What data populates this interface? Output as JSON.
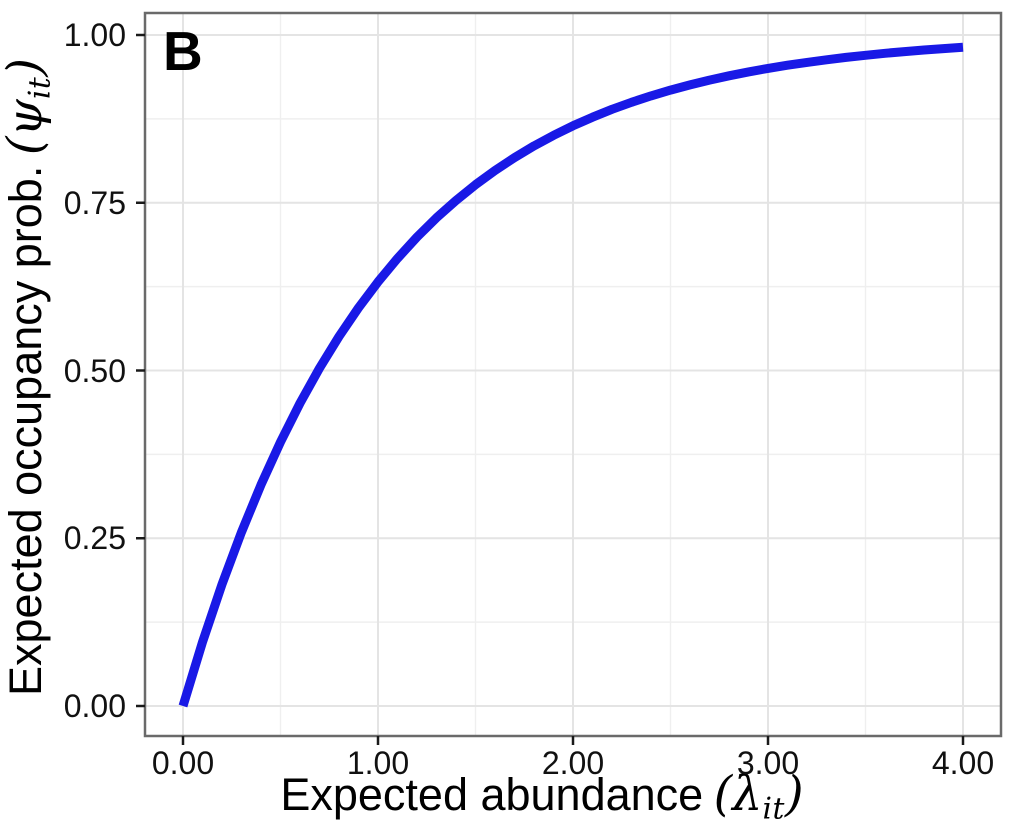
{
  "figure": {
    "panel_label": "B"
  },
  "colors": {
    "curve": "#1919e6",
    "grid_major": "#e4e4e4",
    "grid_minor": "#efefef",
    "panel_border": "#6a6a6a",
    "tick_mark": "#1a1a1a",
    "text": "#000000",
    "background": "#ffffff"
  },
  "chart_data": {
    "type": "line",
    "title": "",
    "legend": "none",
    "grid": {
      "major": true,
      "minor": true
    },
    "x_axis": {
      "label_text": "Expected abundance",
      "label_math": {
        "open": "(",
        "symbol": "λ",
        "subscript": "it",
        "close": ")"
      },
      "range": [
        0,
        4
      ],
      "ticks": [
        {
          "label": "0.00",
          "value": 0
        },
        {
          "label": "1.00",
          "value": 1
        },
        {
          "label": "2.00",
          "value": 2
        },
        {
          "label": "3.00",
          "value": 3
        },
        {
          "label": "4.00",
          "value": 4
        }
      ]
    },
    "y_axis": {
      "label_text": "Expected occupancy prob.",
      "label_math": {
        "open": "(",
        "symbol": "ψ",
        "subscript": "it",
        "close": ")"
      },
      "range": [
        0,
        1
      ],
      "ticks": [
        {
          "label": "0.00",
          "value": 0
        },
        {
          "label": "0.25",
          "value": 0.25
        },
        {
          "label": "0.50",
          "value": 0.5
        },
        {
          "label": "0.75",
          "value": 0.75
        },
        {
          "label": "1.00",
          "value": 1
        }
      ]
    },
    "series": [
      {
        "name": "expected-occupancy-curve",
        "color": "#1919e6",
        "x": [
          0,
          0.1,
          0.2,
          0.3,
          0.4,
          0.5,
          0.6,
          0.7,
          0.8,
          0.9,
          1.0,
          1.1,
          1.2,
          1.3,
          1.4,
          1.5,
          1.6,
          1.7,
          1.8,
          1.9,
          2.0,
          2.1,
          2.2,
          2.3,
          2.4,
          2.5,
          2.6,
          2.7,
          2.8,
          2.9,
          3.0,
          3.1,
          3.2,
          3.3,
          3.4,
          3.5,
          3.6,
          3.7,
          3.8,
          3.9,
          4.0
        ],
        "y": [
          0,
          0.0952,
          0.1813,
          0.2592,
          0.3297,
          0.3935,
          0.4512,
          0.5034,
          0.5507,
          0.5934,
          0.6321,
          0.6671,
          0.6988,
          0.7275,
          0.7534,
          0.7769,
          0.7981,
          0.8173,
          0.8347,
          0.8504,
          0.8647,
          0.8775,
          0.8892,
          0.8997,
          0.9093,
          0.9179,
          0.9257,
          0.9328,
          0.9392,
          0.945,
          0.9502,
          0.955,
          0.9592,
          0.9631,
          0.9666,
          0.9698,
          0.9727,
          0.9753,
          0.9776,
          0.9798,
          0.9817
        ]
      }
    ]
  }
}
